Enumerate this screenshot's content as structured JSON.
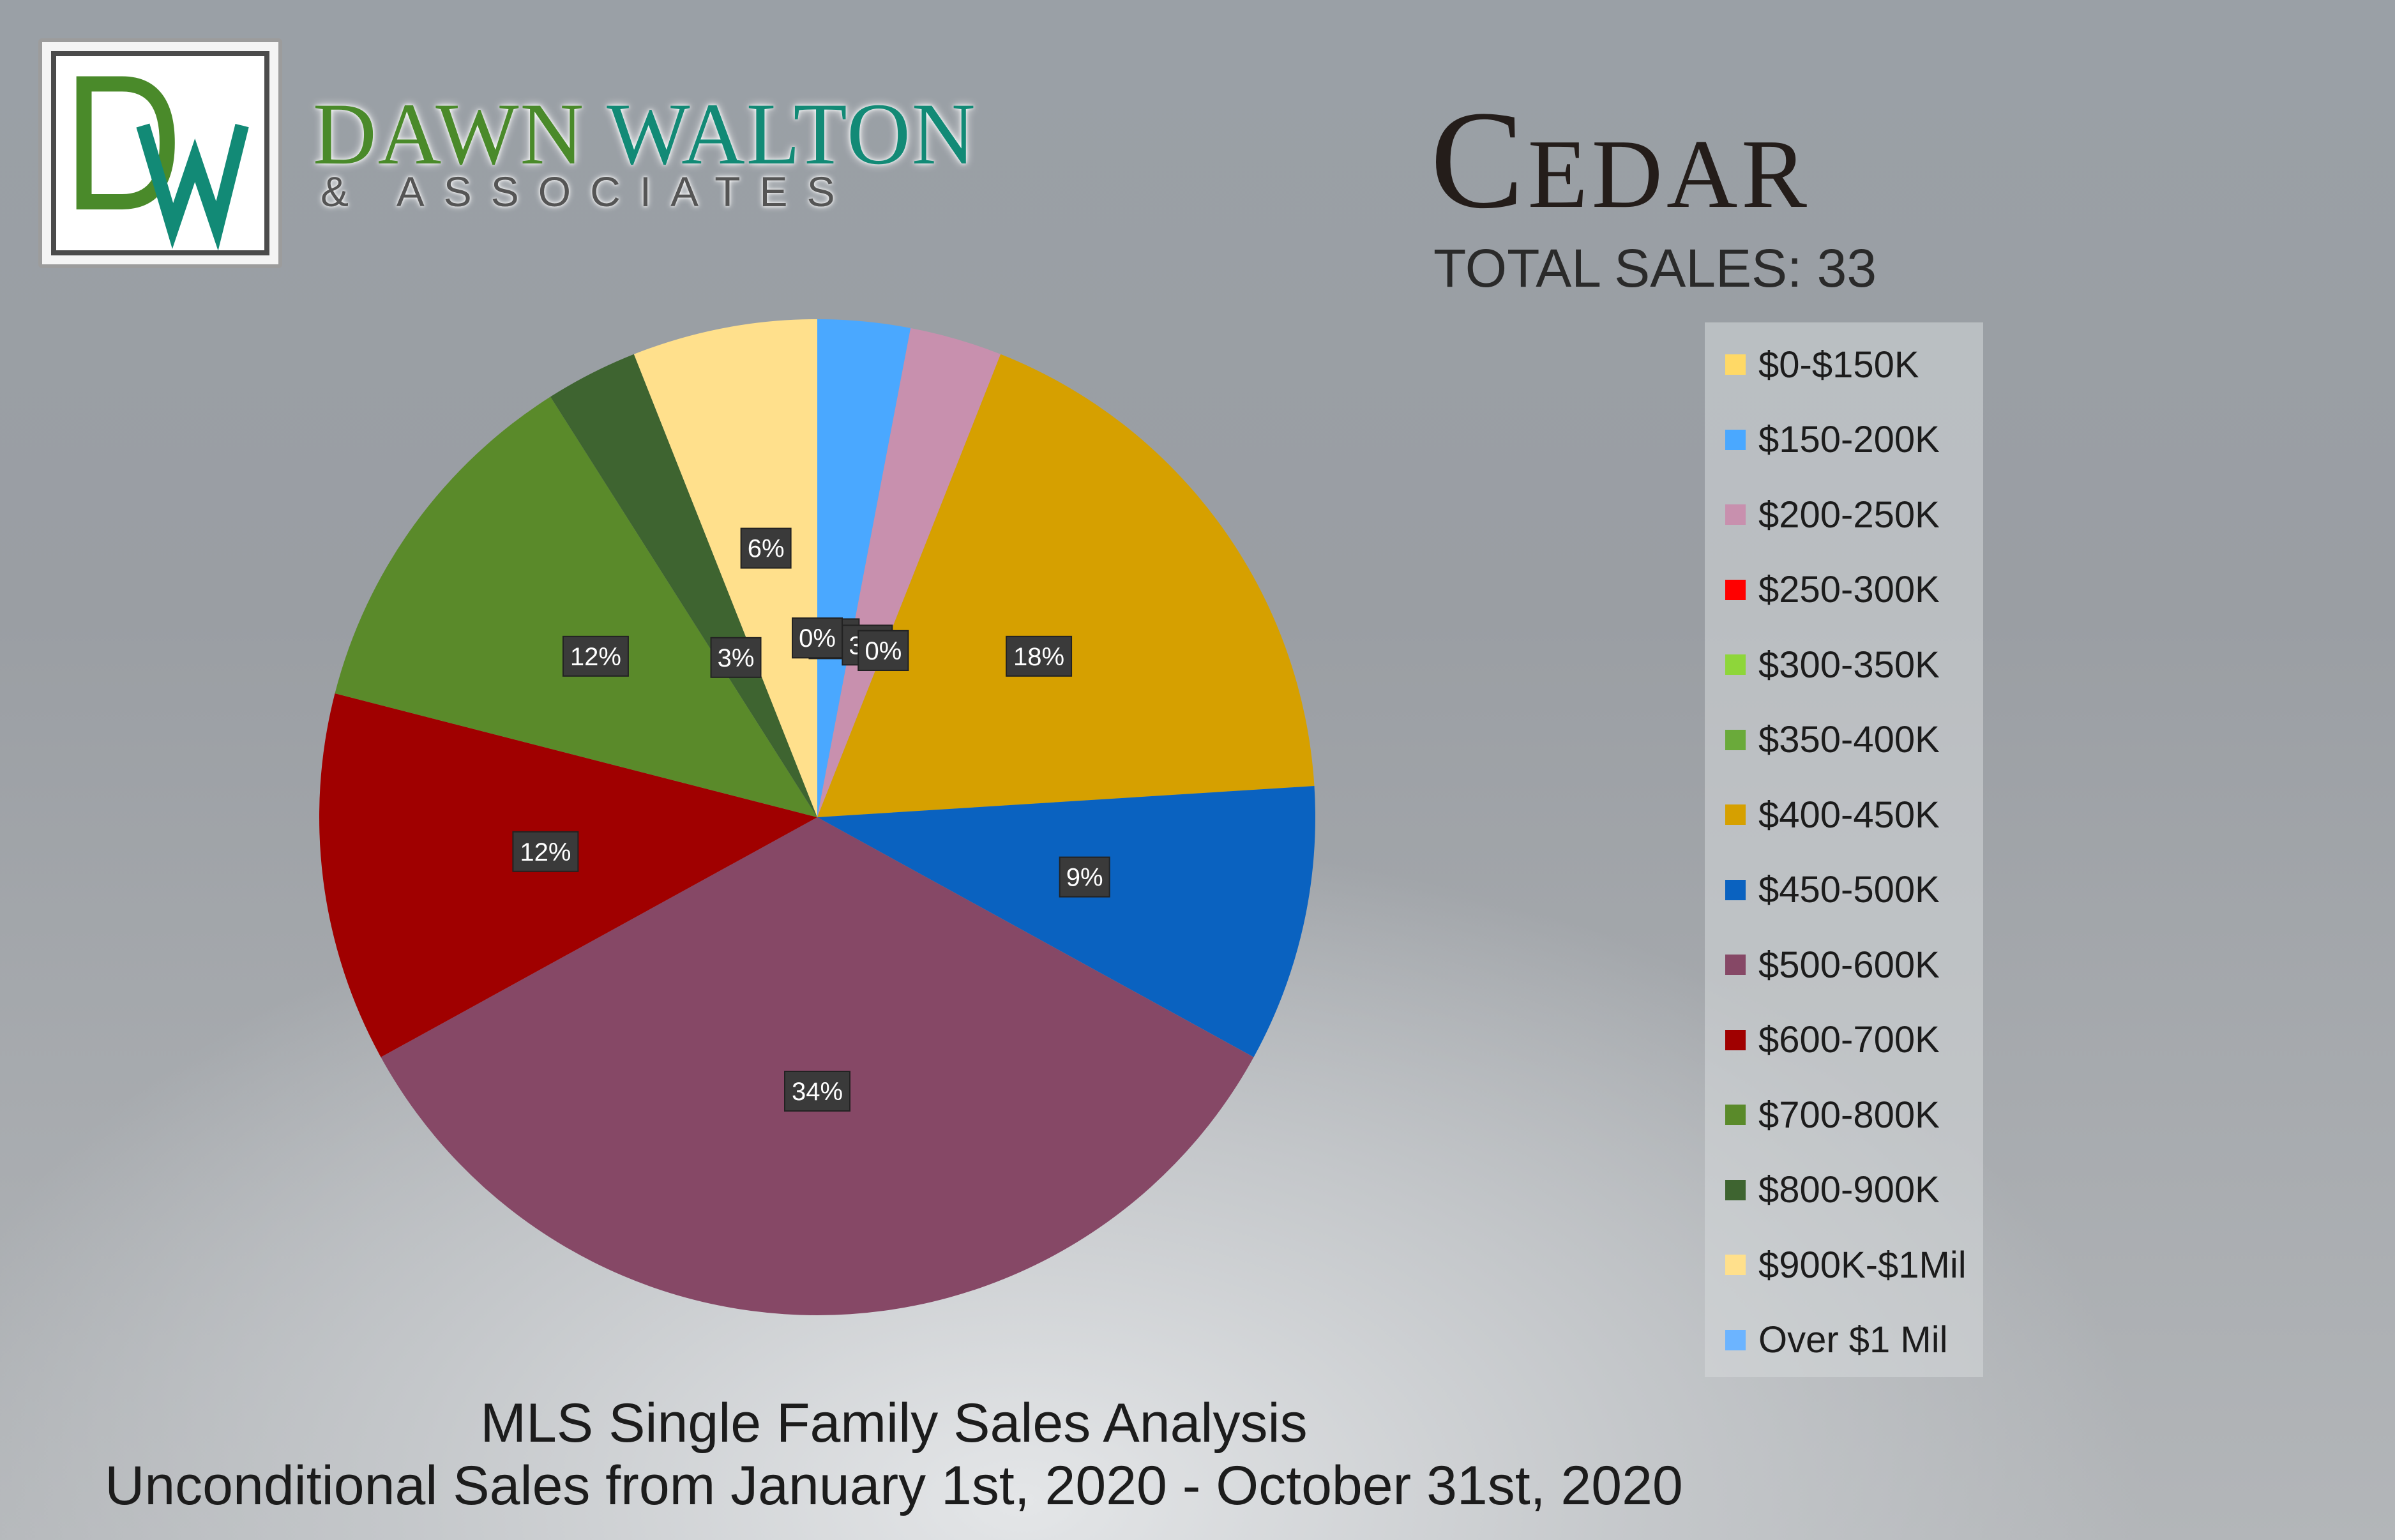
{
  "brand": {
    "monogram": "DW",
    "name_first": "DAWN",
    "name_last": "WALTON",
    "tagline": "& ASSOCIATES"
  },
  "header": {
    "title": "Cedar",
    "total_sales": "TOTAL SALES: 33"
  },
  "footer": {
    "line1": "MLS Single Family Sales Analysis",
    "line2": "Unconditional Sales from January 1st, 2020 - October 31st, 2020"
  },
  "chart_data": {
    "type": "pie",
    "start": "12 o'clock, clockwise",
    "legend_position": "right",
    "categories": [
      "$0-$150K",
      "$150-200K",
      "$200-250K",
      "$250-300K",
      "$300-350K",
      "$350-400K",
      "$400-450K",
      "$450-500K",
      "$500-600K",
      "$600-700K",
      "$700-800K",
      "$800-900K",
      "$900K-$1Mil",
      "Over $1 Mil"
    ],
    "values": [
      0,
      3,
      3,
      0,
      0,
      0,
      18,
      9,
      34,
      12,
      12,
      3,
      6,
      0
    ],
    "data_labels": [
      "0%",
      "3%",
      "3%",
      "0%",
      "0%",
      "0%",
      "18%",
      "9%",
      "34%",
      "12%",
      "12%",
      "3%",
      "6%",
      "0%"
    ],
    "colors": [
      "#ffd966",
      "#4aa8ff",
      "#c890ae",
      "#ff0000",
      "#8ed63a",
      "#6aaa3a",
      "#d6a000",
      "#0a62c0",
      "#864866",
      "#a00000",
      "#5a8a2a",
      "#3e6430",
      "#ffe08c",
      "#6cb4ff"
    ]
  }
}
